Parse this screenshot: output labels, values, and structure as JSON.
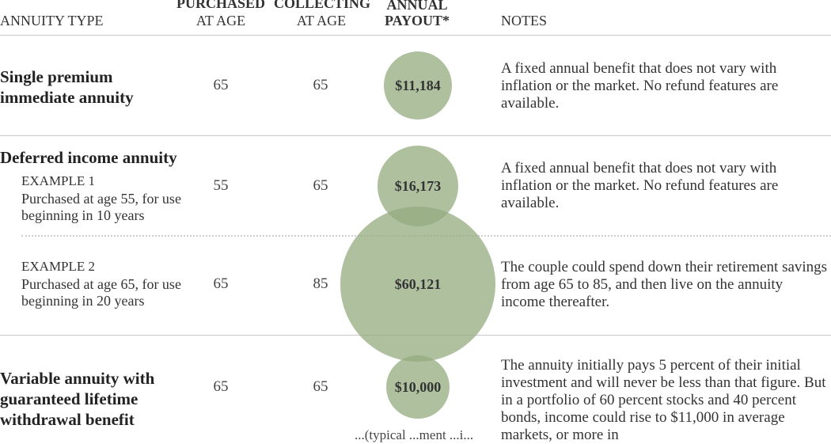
{
  "headers": {
    "annuity_type": "ANNUITY TYPE",
    "purchased_l1": "PURCHASED",
    "purchased_l2": "AT AGE",
    "collecting_l1": "COLLECTING",
    "collecting_l2": "AT AGE",
    "payout_l1": "ANNUAL",
    "payout_l2": "PAYOUT*",
    "notes": "NOTES"
  },
  "rows": {
    "spia": {
      "title_l1": "Single premium",
      "title_l2": "immediate annuity",
      "purchased": "65",
      "collecting": "65",
      "payout": "$11,184",
      "note": "A fixed annual benefit that does not vary with inflation or the market. No refund features are available."
    },
    "dia": {
      "title": "Deferred income annuity"
    },
    "ex1": {
      "label": "EXAMPLE 1",
      "desc": "Purchased at age 55, for use beginning in 10 years",
      "purchased": "55",
      "collecting": "65",
      "payout": "$16,173",
      "note": "A fixed annual benefit that does not vary with inflation or the market. No refund features are available."
    },
    "ex2": {
      "label": "EXAMPLE 2",
      "desc": "Purchased at age 65, for use beginning in 20 years",
      "purchased": "65",
      "collecting": "85",
      "payout": "$60,121",
      "note": "The couple could spend down their retirement savings from age 65 to 85, and then live on the annuity income thereafter."
    },
    "va": {
      "title_l1": "Variable annuity with",
      "title_l2": "guaranteed lifetime",
      "title_l3": "withdrawal benefit",
      "purchased": "65",
      "collecting": "65",
      "payout": "$10,000",
      "note": "The annuity initially pays 5 percent of their initial investment and will never be less than that figure. But in a portfolio of 60 percent stocks and 40 percent bonds, income could rise to $11,000 in average markets, or more in"
    }
  },
  "footnote_fragment": "...(typical ...ment ...i...",
  "chart_data": {
    "type": "bubble",
    "categories": [
      "Single premium immediate annuity",
      "EXAMPLE 1",
      "EXAMPLE 2",
      "Variable annuity with guaranteed lifetime withdrawal benefit"
    ],
    "values": [
      11184,
      16173,
      60121,
      10000
    ],
    "value_labels": [
      "$11,184",
      "$16,173",
      "$60,121",
      "$10,000"
    ],
    "purchased_at_age": [
      65,
      55,
      65,
      65
    ],
    "collecting_at_age": [
      65,
      65,
      85,
      65
    ],
    "bubble_color": "#94ab7f",
    "bubble_opacity": 0.75
  }
}
